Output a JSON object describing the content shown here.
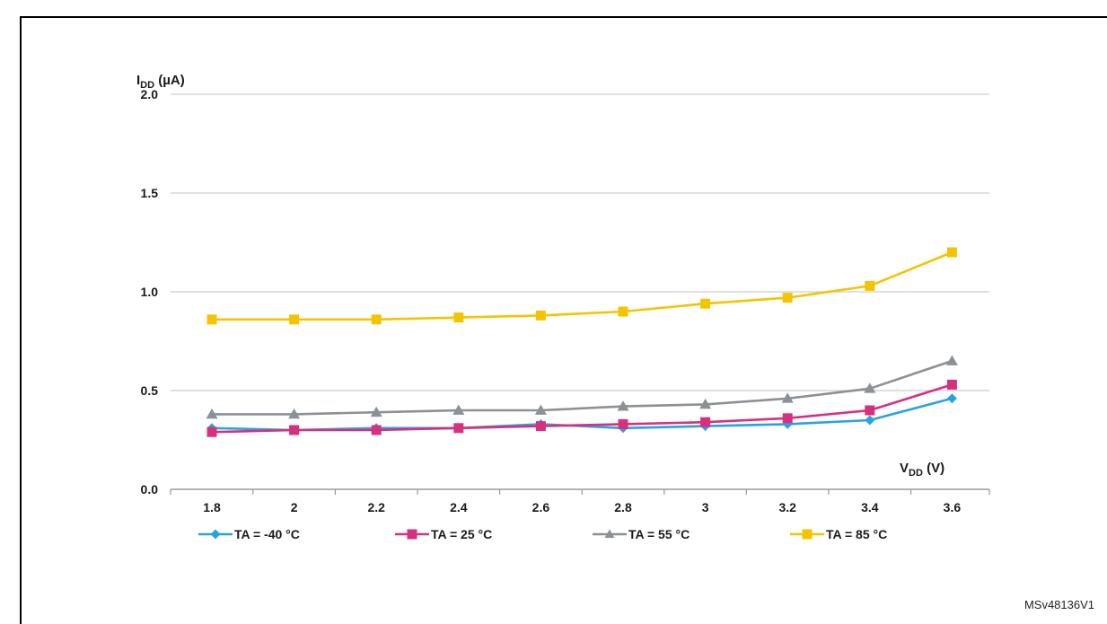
{
  "figure_id": "MSv48136V1",
  "chart_data": {
    "type": "line",
    "x": [
      1.8,
      2,
      2.2,
      2.4,
      2.6,
      2.8,
      3,
      3.2,
      3.4,
      3.6
    ],
    "x_tick_labels": [
      "1.8",
      "2",
      "2.2",
      "2.4",
      "2.6",
      "2.8",
      "3",
      "3.2",
      "3.4",
      "3.6"
    ],
    "y_ticks": [
      0.0,
      0.5,
      1.0,
      1.5,
      2.0
    ],
    "y_tick_labels": [
      "0.0",
      "0.5",
      "1.0",
      "1.5",
      "2.0"
    ],
    "ylim": [
      0,
      2.0
    ],
    "ylabel_main": "I",
    "ylabel_sub": "DD",
    "ylabel_unit": " (µA)",
    "xlabel_main": "V",
    "xlabel_sub": "DD",
    "xlabel_unit": " (V)",
    "grid": "horizontal",
    "legend_placement": "bottom",
    "series": [
      {
        "name": "TA = -40 °C",
        "color": "#29a3e0",
        "marker": "diamond",
        "values": [
          0.31,
          0.3,
          0.31,
          0.31,
          0.33,
          0.31,
          0.32,
          0.33,
          0.35,
          0.46
        ]
      },
      {
        "name": "TA = 25 °C",
        "color": "#d6307e",
        "marker": "square",
        "values": [
          0.29,
          0.3,
          0.3,
          0.31,
          0.32,
          0.33,
          0.34,
          0.36,
          0.4,
          0.53
        ]
      },
      {
        "name": "TA = 55 °C",
        "color": "#8c9195",
        "marker": "triangle",
        "values": [
          0.38,
          0.38,
          0.39,
          0.4,
          0.4,
          0.42,
          0.43,
          0.46,
          0.51,
          0.65
        ]
      },
      {
        "name": "TA = 85 °C",
        "color": "#f5c400",
        "marker": "square",
        "values": [
          0.86,
          0.86,
          0.86,
          0.87,
          0.88,
          0.9,
          0.94,
          0.97,
          1.03,
          1.2
        ]
      }
    ]
  }
}
